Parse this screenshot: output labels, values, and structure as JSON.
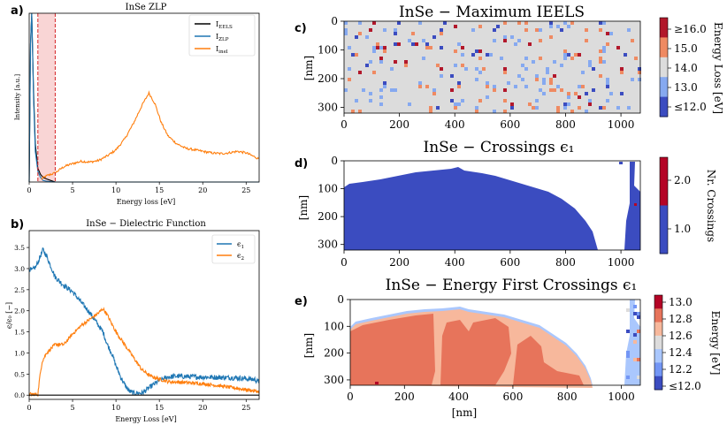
{
  "panels": {
    "a": {
      "label": "a)",
      "title": "InSe ZLP",
      "xlabel": "Energy loss [eV]",
      "ylabel": "Intensity [a.u.]",
      "xticks": [
        "0",
        "5",
        "10",
        "15",
        "20",
        "25"
      ],
      "legend": [
        {
          "name": "I",
          "sub": "EELS",
          "color": "#000000"
        },
        {
          "name": "I",
          "sub": "ZLP",
          "color": "#1f77b4"
        },
        {
          "name": "I",
          "sub": "inel",
          "color": "#ff7f0e"
        }
      ],
      "vline_color": "#d62728",
      "shade_color": "#f9d5d5"
    },
    "b": {
      "label": "b)",
      "title": "InSe − Dielectric Function",
      "xlabel": "Energy Loss [eV]",
      "ylabel": "ϵ/ϵ₀ [−]",
      "xticks": [
        "0",
        "5",
        "10",
        "15",
        "20",
        "25"
      ],
      "yticks": [
        "0.0",
        "0.5",
        "1.0",
        "1.5",
        "2.0",
        "2.5",
        "3.0",
        "3.5"
      ],
      "legend": [
        {
          "name": "ϵ",
          "sub": "1",
          "color": "#1f77b4"
        },
        {
          "name": "ϵ",
          "sub": "2",
          "color": "#ff7f0e"
        }
      ]
    },
    "c": {
      "label": "c)",
      "title": "InSe − Maximum IEELS",
      "ylabel": "[nm]",
      "xticks": [
        "0",
        "200",
        "400",
        "600",
        "800",
        "1000"
      ],
      "yticks": [
        "0",
        "100",
        "200",
        "300"
      ],
      "colorbar_label": "Energy Loss [eV]",
      "colorbar_ticks": [
        "≥16.0",
        "15.0",
        "14.0",
        "13.0",
        "≤12.0"
      ],
      "colorbar_colors": [
        "#b2182b",
        "#ef8a62",
        "#dcdcdc",
        "#86a9f0",
        "#3b4cc0"
      ]
    },
    "d": {
      "label": "d)",
      "title": "InSe − Crossings ϵ₁",
      "ylabel": "[nm]",
      "xticks": [
        "0",
        "200",
        "400",
        "600",
        "800",
        "1000"
      ],
      "yticks": [
        "0",
        "100",
        "200",
        "300"
      ],
      "colorbar_label": "Nr. Crossings",
      "colorbar_ticks": [
        "2.0",
        "1.0"
      ],
      "colorbar_colors": [
        "#b40426",
        "#3b4cc0"
      ]
    },
    "e": {
      "label": "e)",
      "title": "InSe − Energy First Crossings ϵ₁",
      "ylabel": "[nm]",
      "xlabel": "[nm]",
      "xticks": [
        "0",
        "200",
        "400",
        "600",
        "800",
        "1000"
      ],
      "yticks": [
        "0",
        "100",
        "200",
        "300"
      ],
      "colorbar_label": "Energy [eV]",
      "colorbar_ticks": [
        "13.0",
        "12.8",
        "12.6",
        "12.4",
        "12.2",
        "≤12.0"
      ],
      "colorbar_colors": [
        "#b40426",
        "#e7745b",
        "#f7b89c",
        "#dddcdc",
        "#aac7fd",
        "#7396f5",
        "#3b4cc0"
      ]
    }
  },
  "chart_data": [
    {
      "type": "line",
      "title": "InSe ZLP",
      "xlabel": "Energy loss [eV]",
      "ylabel": "Intensity [a.u.]",
      "xlim": [
        0,
        26.5
      ],
      "ylim": [
        0,
        1.1
      ],
      "vlines": [
        1.0,
        3.0
      ],
      "series": [
        {
          "name": "IEELS",
          "color": "#000000",
          "x": [
            0.0,
            0.15,
            0.3,
            0.5,
            0.7,
            1.0,
            1.3,
            1.6,
            2.0,
            2.5,
            3.0
          ],
          "y": [
            0.0,
            0.9,
            1.1,
            0.6,
            0.25,
            0.09,
            0.05,
            0.03,
            0.02,
            0.01,
            0.0
          ]
        },
        {
          "name": "IZLP",
          "color": "#1f77b4",
          "x": [
            0.0,
            0.15,
            0.3,
            0.5,
            0.7,
            1.0,
            1.3,
            1.6,
            2.0,
            2.5,
            3.0,
            5,
            10,
            26.5
          ],
          "y": [
            0.0,
            0.9,
            1.1,
            0.55,
            0.2,
            0.07,
            0.03,
            0.01,
            0.005,
            0.002,
            0.0,
            0.0,
            0.0,
            0.0
          ]
        },
        {
          "name": "Iinel",
          "color": "#ff7f0e",
          "x": [
            1.4,
            2,
            3,
            4,
            5,
            6,
            7,
            8,
            9,
            10,
            11,
            12,
            13,
            13.8,
            14.5,
            15.2,
            16,
            17,
            18,
            19,
            20,
            21,
            22,
            23,
            24,
            25,
            26.5
          ],
          "y": [
            0.02,
            0.04,
            0.06,
            0.1,
            0.12,
            0.135,
            0.13,
            0.14,
            0.17,
            0.21,
            0.28,
            0.38,
            0.5,
            0.58,
            0.51,
            0.39,
            0.3,
            0.25,
            0.22,
            0.21,
            0.2,
            0.19,
            0.185,
            0.19,
            0.2,
            0.19,
            0.15
          ]
        }
      ]
    },
    {
      "type": "line",
      "title": "InSe − Dielectric Function",
      "xlabel": "Energy Loss [eV]",
      "ylabel": "ϵ/ϵ₀ [−]",
      "xlim": [
        0,
        26.5
      ],
      "ylim": [
        -0.1,
        3.9
      ],
      "series": [
        {
          "name": "ϵ1",
          "color": "#1f77b4",
          "x": [
            0,
            0.3,
            0.8,
            1.2,
            1.6,
            2,
            2.5,
            3,
            4,
            5,
            6,
            7,
            8,
            8.5,
            9,
            9.5,
            10,
            10.5,
            11,
            11.5,
            12,
            13,
            14,
            15,
            16,
            17,
            18,
            20,
            22,
            24,
            26,
            26.5
          ],
          "y": [
            3.0,
            2.95,
            3.05,
            3.25,
            3.45,
            3.3,
            3.05,
            2.8,
            2.6,
            2.45,
            2.2,
            1.95,
            1.65,
            1.5,
            1.2,
            1.0,
            0.7,
            0.45,
            0.25,
            0.1,
            0.05,
            0.05,
            0.2,
            0.35,
            0.43,
            0.45,
            0.44,
            0.43,
            0.42,
            0.41,
            0.37,
            0.3
          ]
        },
        {
          "name": "ϵ2",
          "color": "#ff7f0e",
          "x": [
            0,
            1.0,
            1.2,
            1.5,
            2,
            3,
            4,
            5,
            6,
            7,
            8,
            8.5,
            9,
            9.5,
            10,
            11,
            12,
            13,
            14,
            15,
            16,
            18,
            20,
            22,
            24,
            26,
            26.5
          ],
          "y": [
            0.02,
            0.02,
            0.4,
            0.8,
            1.0,
            1.2,
            1.2,
            1.45,
            1.65,
            1.8,
            1.95,
            2.05,
            1.9,
            1.7,
            1.5,
            1.2,
            0.9,
            0.6,
            0.45,
            0.38,
            0.32,
            0.3,
            0.27,
            0.22,
            0.16,
            0.1,
            0.08
          ]
        },
        {
          "name": "zero",
          "color": "#000000",
          "x": [
            0,
            26.5
          ],
          "y": [
            0,
            0
          ]
        }
      ]
    },
    {
      "type": "heatmap",
      "title": "InSe − Maximum IEELS",
      "ylabel": "[nm]",
      "xlim": [
        0,
        1070
      ],
      "ylim": [
        320,
        0
      ],
      "value_range": [
        12.0,
        16.0
      ],
      "typical_value": 14.0,
      "colorbar_label": "Energy Loss [eV]"
    },
    {
      "type": "heatmap",
      "title": "InSe − Crossings ϵ₁",
      "ylabel": "[nm]",
      "xlim": [
        0,
        1070
      ],
      "ylim": [
        320,
        0
      ],
      "value_range": [
        1,
        2
      ],
      "typical_value": 1,
      "colorbar_label": "Nr. Crossings"
    },
    {
      "type": "heatmap",
      "title": "InSe − Energy First Crossings ϵ₁",
      "xlabel": "[nm]",
      "ylabel": "[nm]",
      "xlim": [
        0,
        1070
      ],
      "ylim": [
        320,
        0
      ],
      "value_range": [
        12.0,
        13.0
      ],
      "typical_value": 12.7,
      "colorbar_label": "Energy [eV]"
    }
  ]
}
